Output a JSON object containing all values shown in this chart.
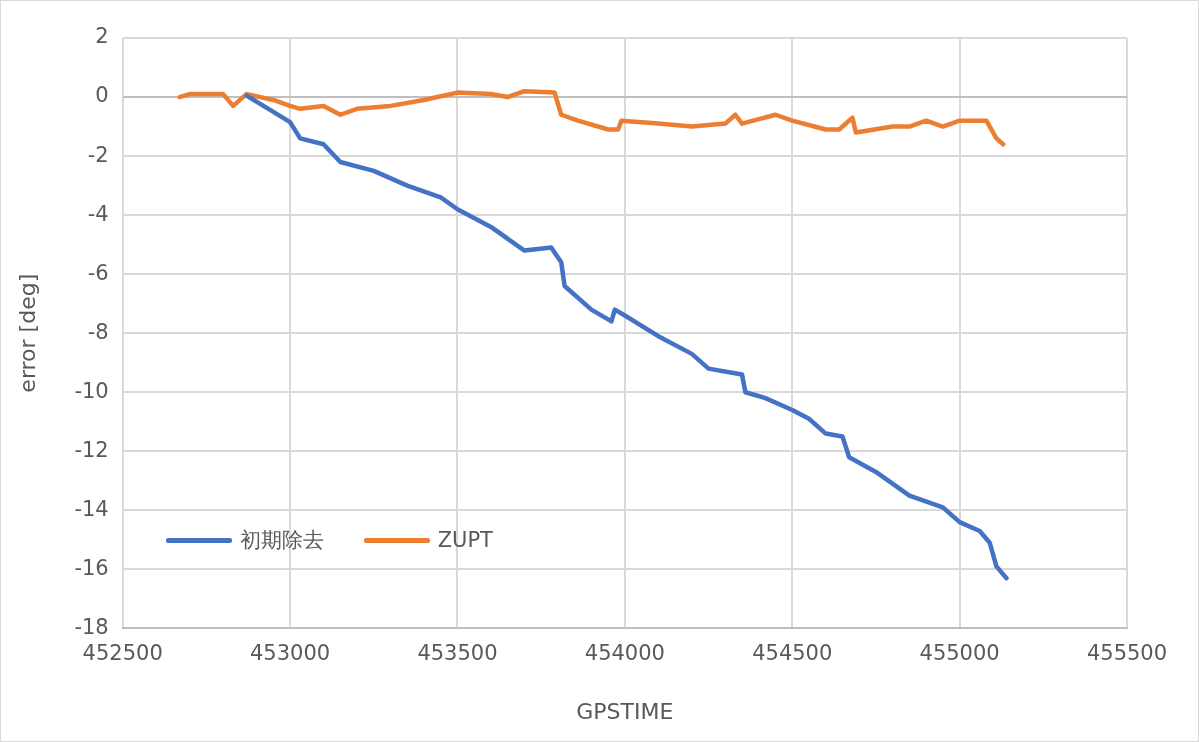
{
  "chart_data": {
    "type": "line",
    "xlabel": "GPSTIME",
    "ylabel": "error [deg]",
    "xlim": [
      452500,
      455500
    ],
    "xticks": [
      452500,
      453000,
      453500,
      454000,
      454500,
      455000,
      455500
    ],
    "ylim": [
      -18,
      2
    ],
    "yticks": [
      -18,
      -16,
      -14,
      -12,
      -10,
      -8,
      -6,
      -4,
      -2,
      0,
      2
    ],
    "grid": true,
    "legend": "bottom left",
    "marker": "none",
    "line_style": "solid",
    "series": [
      {
        "name": "初期除去",
        "color": "#4472c4",
        "x": [
          452870,
          452950,
          453000,
          453030,
          453100,
          453150,
          453250,
          453350,
          453450,
          453500,
          453600,
          453700,
          453780,
          453810,
          453820,
          453900,
          453960,
          453970,
          454000,
          454100,
          454200,
          454250,
          454350,
          454360,
          454420,
          454500,
          454550,
          454600,
          454650,
          454670,
          454750,
          454850,
          454950,
          455000,
          455060,
          455090,
          455110,
          455140
        ],
        "values": [
          0.05,
          -0.5,
          -0.85,
          -1.4,
          -1.6,
          -2.2,
          -2.5,
          -3.0,
          -3.4,
          -3.8,
          -4.4,
          -5.2,
          -5.1,
          -5.6,
          -6.4,
          -7.2,
          -7.6,
          -7.2,
          -7.4,
          -8.1,
          -8.7,
          -9.2,
          -9.4,
          -10.0,
          -10.2,
          -10.6,
          -10.9,
          -11.4,
          -11.5,
          -12.2,
          -12.7,
          -13.5,
          -13.9,
          -14.4,
          -14.7,
          -15.1,
          -15.9,
          -16.3
        ]
      },
      {
        "name": "ZUPT",
        "color": "#ed7d31",
        "x": [
          452670,
          452700,
          452800,
          452830,
          452870,
          452950,
          453000,
          453030,
          453100,
          453150,
          453200,
          453300,
          453400,
          453440,
          453500,
          453600,
          453650,
          453700,
          453790,
          453810,
          453860,
          453950,
          453980,
          453990,
          454100,
          454200,
          454300,
          454330,
          454350,
          454450,
          454500,
          454600,
          454640,
          454680,
          454690,
          454800,
          454850,
          454900,
          454950,
          455000,
          455080,
          455110,
          455130
        ],
        "values": [
          0.0,
          0.1,
          0.1,
          -0.3,
          0.1,
          -0.1,
          -0.3,
          -0.4,
          -0.3,
          -0.6,
          -0.4,
          -0.3,
          -0.1,
          0.0,
          0.15,
          0.1,
          0.0,
          0.2,
          0.15,
          -0.6,
          -0.8,
          -1.1,
          -1.1,
          -0.8,
          -0.9,
          -1.0,
          -0.9,
          -0.6,
          -0.9,
          -0.6,
          -0.8,
          -1.1,
          -1.1,
          -0.7,
          -1.2,
          -1.0,
          -1.0,
          -0.8,
          -1.0,
          -0.8,
          -0.8,
          -1.4,
          -1.6
        ]
      }
    ]
  }
}
